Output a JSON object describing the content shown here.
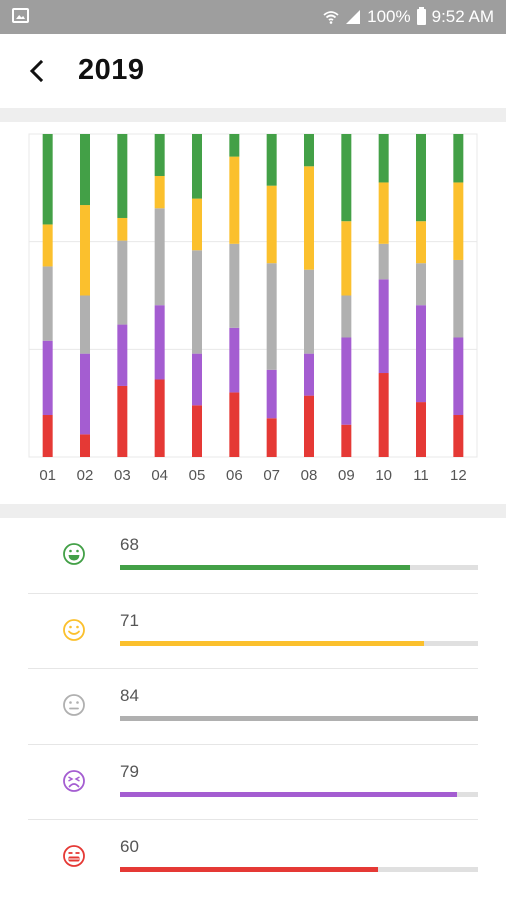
{
  "status_bar": {
    "battery": "100%",
    "time": "9:52 AM"
  },
  "header": {
    "title": "2019"
  },
  "colors": {
    "great": "#43a047",
    "good": "#fbc02d",
    "neutral": "#b0b0b0",
    "bad": "#a45dd1",
    "awful": "#e53935"
  },
  "chart_data": {
    "type": "bar",
    "stacked": true,
    "categories": [
      "01",
      "02",
      "03",
      "04",
      "05",
      "06",
      "07",
      "08",
      "09",
      "10",
      "11",
      "12"
    ],
    "ylim": [
      0,
      1
    ],
    "grid": true,
    "series": [
      {
        "values": [
          0.13,
          0.07,
          0.22,
          0.24,
          0.16,
          0.2,
          0.12,
          0.19,
          0.1,
          0.26,
          0.17,
          0.13
        ]
      },
      {
        "values": [
          0.23,
          0.25,
          0.19,
          0.23,
          0.16,
          0.2,
          0.15,
          0.13,
          0.27,
          0.29,
          0.3,
          0.24
        ]
      },
      {
        "values": [
          0.23,
          0.18,
          0.26,
          0.3,
          0.32,
          0.26,
          0.33,
          0.26,
          0.13,
          0.11,
          0.13,
          0.24
        ]
      },
      {
        "values": [
          0.13,
          0.28,
          0.07,
          0.1,
          0.16,
          0.27,
          0.24,
          0.32,
          0.23,
          0.19,
          0.13,
          0.24
        ]
      },
      {
        "values": [
          0.28,
          0.22,
          0.26,
          0.13,
          0.2,
          0.07,
          0.16,
          0.1,
          0.27,
          0.15,
          0.27,
          0.15
        ]
      }
    ]
  },
  "moods": [
    {
      "key": "great",
      "icon": "laughing-face-icon",
      "count": "68",
      "progress": 0.81
    },
    {
      "key": "good",
      "icon": "smiling-face-icon",
      "count": "71",
      "progress": 0.85
    },
    {
      "key": "neutral",
      "icon": "neutral-face-icon",
      "count": "84",
      "progress": 1.0
    },
    {
      "key": "bad",
      "icon": "sad-face-icon",
      "count": "79",
      "progress": 0.94
    },
    {
      "key": "awful",
      "icon": "awful-face-icon",
      "count": "60",
      "progress": 0.72
    }
  ]
}
